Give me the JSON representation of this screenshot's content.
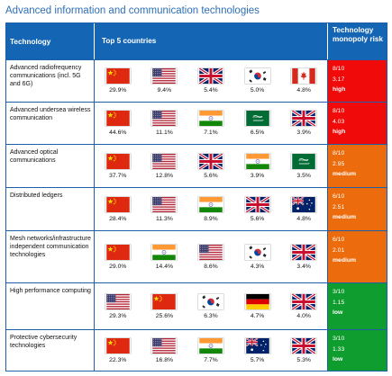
{
  "title": "Advanced information and communication technologies",
  "headers": {
    "technology": "Technology",
    "top5": "Top 5 countries",
    "risk": "Technology monopoly risk"
  },
  "rows": [
    {
      "tech": "Advanced radiofrequency communications (incl. 5G and 6G)",
      "countries": [
        {
          "flag": "cn-flag",
          "pct": "29.9%"
        },
        {
          "flag": "us-flag",
          "pct": "9.4%"
        },
        {
          "flag": "uk-flag",
          "pct": "5.4%"
        },
        {
          "flag": "kr-flag",
          "pct": "5.0%"
        },
        {
          "flag": "ca-flag",
          "pct": "4.8%"
        }
      ],
      "risk": {
        "score": "8/10",
        "ratio": "3.17",
        "level": "high"
      }
    },
    {
      "tech": "Advanced undersea wireless communication",
      "countries": [
        {
          "flag": "cn-flag",
          "pct": "44.6%"
        },
        {
          "flag": "us-flag",
          "pct": "11.1%"
        },
        {
          "flag": "in-flag",
          "pct": "7.1%"
        },
        {
          "flag": "sa-flag",
          "pct": "6.5%"
        },
        {
          "flag": "uk-flag",
          "pct": "3.9%"
        }
      ],
      "risk": {
        "score": "8/10",
        "ratio": "4.03",
        "level": "high"
      }
    },
    {
      "tech": "Advanced optical communications",
      "countries": [
        {
          "flag": "cn-flag",
          "pct": "37.7%"
        },
        {
          "flag": "us-flag",
          "pct": "12.8%"
        },
        {
          "flag": "uk-flag",
          "pct": "5.6%"
        },
        {
          "flag": "in-flag",
          "pct": "3.9%"
        },
        {
          "flag": "sa-flag",
          "pct": "3.5%"
        }
      ],
      "risk": {
        "score": "8/10",
        "ratio": "2.95",
        "level": "medium"
      }
    },
    {
      "tech": "Distributed ledgers",
      "countries": [
        {
          "flag": "cn-flag",
          "pct": "28.4%"
        },
        {
          "flag": "us-flag",
          "pct": "11.3%"
        },
        {
          "flag": "in-flag",
          "pct": "8.9%"
        },
        {
          "flag": "uk-flag",
          "pct": "5.6%"
        },
        {
          "flag": "au-flag",
          "pct": "4.8%"
        }
      ],
      "risk": {
        "score": "6/10",
        "ratio": "2.51",
        "level": "medium"
      }
    },
    {
      "tech": "Mesh networks/infrastructure independent communication technologies",
      "countries": [
        {
          "flag": "cn-flag",
          "pct": "29.0%"
        },
        {
          "flag": "in-flag",
          "pct": "14.4%"
        },
        {
          "flag": "us-flag",
          "pct": "8.6%"
        },
        {
          "flag": "kr-flag",
          "pct": "4.3%"
        },
        {
          "flag": "uk-flag",
          "pct": "3.4%"
        }
      ],
      "risk": {
        "score": "6/10",
        "ratio": "2.01",
        "level": "medium"
      }
    },
    {
      "tech": "High performance computing",
      "countries": [
        {
          "flag": "us-flag",
          "pct": "29.3%"
        },
        {
          "flag": "cn-flag",
          "pct": "25.6%"
        },
        {
          "flag": "kr-flag",
          "pct": "6.3%"
        },
        {
          "flag": "de-flag",
          "pct": "4.7%"
        },
        {
          "flag": "uk-flag",
          "pct": "4.0%"
        }
      ],
      "risk": {
        "score": "3/10",
        "ratio": "1.15",
        "level": "low"
      }
    },
    {
      "tech": "Protective cybersecurity technologies",
      "countries": [
        {
          "flag": "cn-flag",
          "pct": "22.3%"
        },
        {
          "flag": "us-flag",
          "pct": "16.8%"
        },
        {
          "flag": "in-flag",
          "pct": "7.7%"
        },
        {
          "flag": "au-flag",
          "pct": "5.7%"
        },
        {
          "flag": "uk-flag",
          "pct": "5.3%"
        }
      ],
      "risk": {
        "score": "3/10",
        "ratio": "1.33",
        "level": "low"
      }
    }
  ]
}
